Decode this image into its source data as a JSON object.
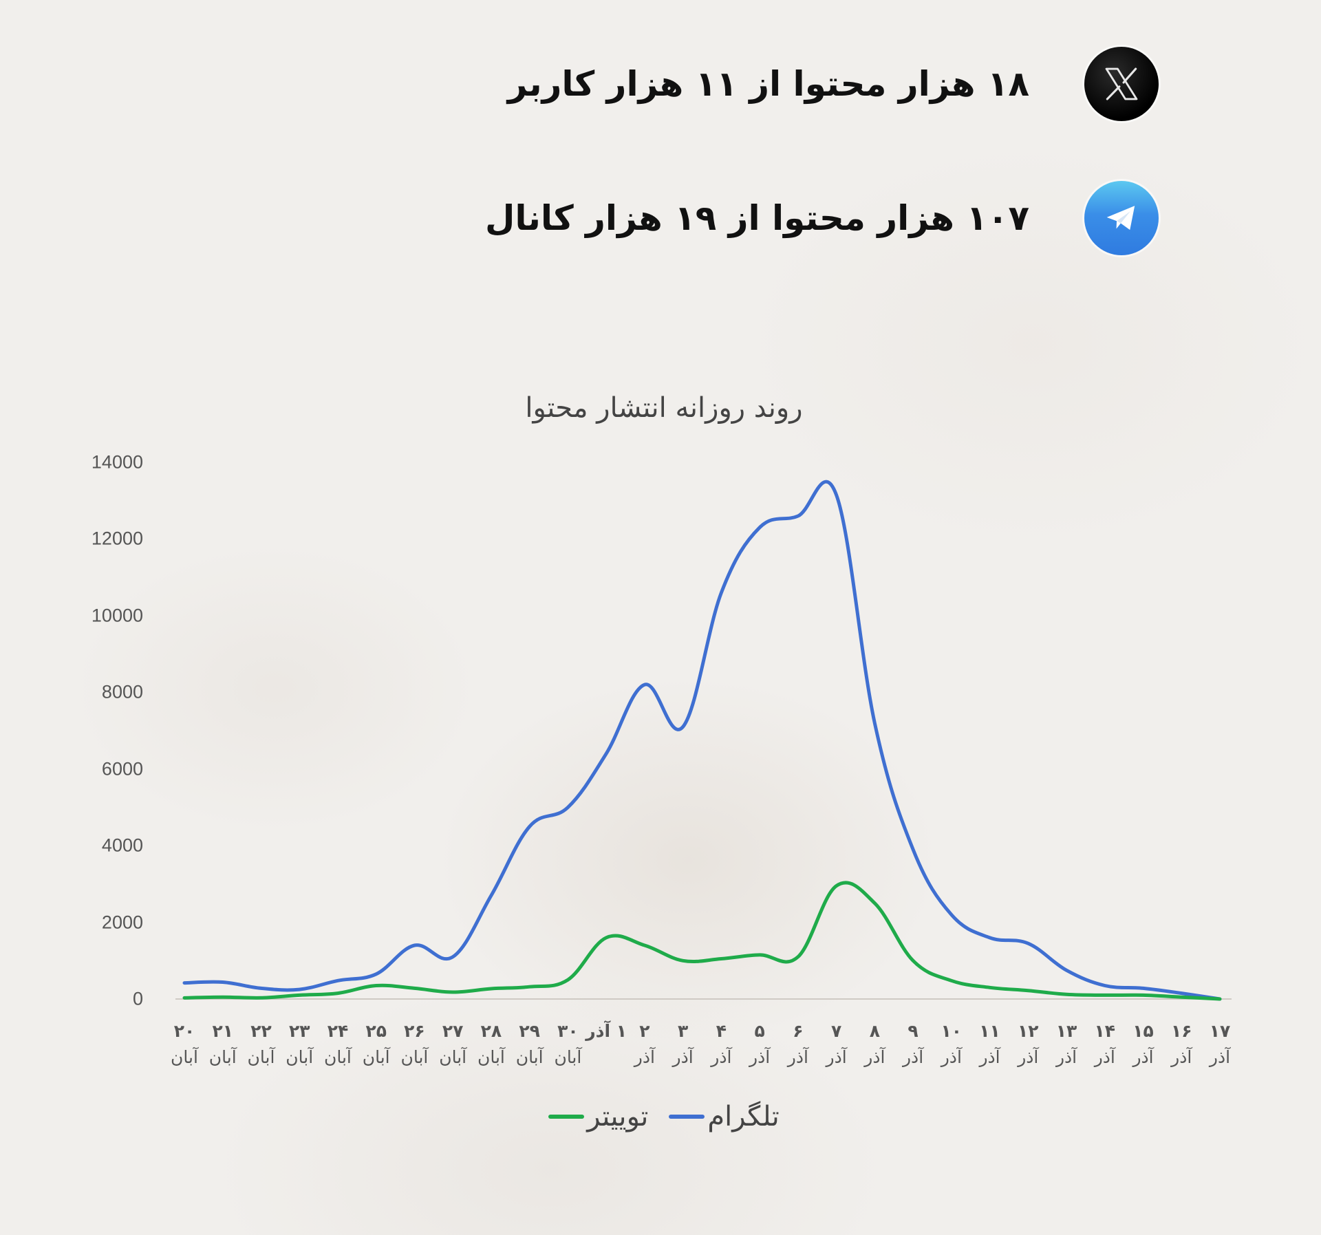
{
  "stats": [
    {
      "platform": "twitter",
      "icon": "x-logo-icon",
      "text": "۱۸ هزار محتوا از ۱۱ هزار کاربر"
    },
    {
      "platform": "telegram",
      "icon": "telegram-logo-icon",
      "text": "۱۰۷ هزار محتوا از ۱۹ هزار کانال"
    }
  ],
  "colors": {
    "background": "#f1efec",
    "telegram": "#3f6fd1",
    "twitter": "#1fab4a",
    "axis_text": "#555555"
  },
  "chart_data": {
    "type": "line",
    "title": "روند روزانه انتشار محتوا",
    "xlabel": "",
    "ylabel": "",
    "ylim": [
      0,
      14000
    ],
    "yticks": [
      "0",
      "2000",
      "4000",
      "6000",
      "8000",
      "10000",
      "12000",
      "14000"
    ],
    "grid": false,
    "smooth": true,
    "legend_position": "bottom",
    "categories": [
      {
        "day": "۲۰",
        "month": "آبان"
      },
      {
        "day": "۲۱",
        "month": "آبان"
      },
      {
        "day": "۲۲",
        "month": "آبان"
      },
      {
        "day": "۲۳",
        "month": "آبان"
      },
      {
        "day": "۲۴",
        "month": "آبان"
      },
      {
        "day": "۲۵",
        "month": "آبان"
      },
      {
        "day": "۲۶",
        "month": "آبان"
      },
      {
        "day": "۲۷",
        "month": "آبان"
      },
      {
        "day": "۲۸",
        "month": "آبان"
      },
      {
        "day": "۲۹",
        "month": "آبان"
      },
      {
        "day": "۳۰",
        "month": "آبان"
      },
      {
        "day": "۱ آذر",
        "month": ""
      },
      {
        "day": "۲",
        "month": "آذر"
      },
      {
        "day": "۳",
        "month": "آذر"
      },
      {
        "day": "۴",
        "month": "آذر"
      },
      {
        "day": "۵",
        "month": "آذر"
      },
      {
        "day": "۶",
        "month": "آذر"
      },
      {
        "day": "۷",
        "month": "آذر"
      },
      {
        "day": "۸",
        "month": "آذر"
      },
      {
        "day": "۹",
        "month": "آذر"
      },
      {
        "day": "۱۰",
        "month": "آذر"
      },
      {
        "day": "۱۱",
        "month": "آذر"
      },
      {
        "day": "۱۲",
        "month": "آذر"
      },
      {
        "day": "۱۳",
        "month": "آذر"
      },
      {
        "day": "۱۴",
        "month": "آذر"
      },
      {
        "day": "۱۵",
        "month": "آذر"
      },
      {
        "day": "۱۶",
        "month": "آذر"
      },
      {
        "day": "۱۷",
        "month": "آذر"
      }
    ],
    "series": [
      {
        "name": "تلگرام",
        "color": "#3f6fd1",
        "values": [
          420,
          440,
          280,
          250,
          480,
          650,
          1400,
          1100,
          2700,
          4500,
          5000,
          6400,
          8200,
          7100,
          10600,
          12300,
          12600,
          13150,
          7200,
          3900,
          2200,
          1600,
          1450,
          750,
          350,
          280,
          150,
          0
        ]
      },
      {
        "name": "توییتر",
        "color": "#1fab4a",
        "values": [
          30,
          50,
          30,
          100,
          150,
          350,
          280,
          180,
          270,
          320,
          500,
          1600,
          1400,
          1000,
          1050,
          1150,
          1100,
          2950,
          2500,
          1000,
          480,
          300,
          220,
          120,
          100,
          100,
          50,
          0
        ]
      }
    ]
  },
  "legend": [
    {
      "label": "تلگرام",
      "color": "#3f6fd1"
    },
    {
      "label": "توییتر",
      "color": "#1fab4a"
    }
  ]
}
